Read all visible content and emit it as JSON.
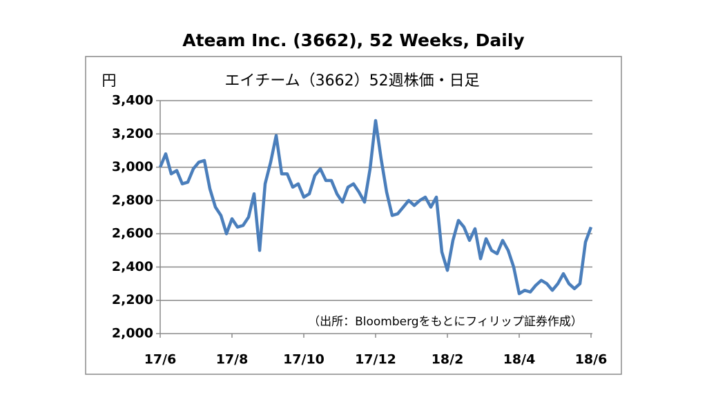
{
  "chart_data": {
    "type": "line",
    "title": "Ateam Inc. (3662), 52 Weeks, Daily",
    "subtitle": "エイチーム（3662）52週株価・日足",
    "y_label": "円",
    "annotation": "（出所：Bloombergをもとにフィリップ証券作成）",
    "categories": [
      "17/6",
      null,
      null,
      null,
      null,
      null,
      null,
      null,
      null,
      null,
      null,
      null,
      null,
      "17/8",
      null,
      null,
      null,
      null,
      null,
      null,
      null,
      null,
      null,
      null,
      null,
      null,
      "17/10",
      null,
      null,
      null,
      null,
      null,
      null,
      null,
      null,
      null,
      null,
      null,
      null,
      "17/12",
      null,
      null,
      null,
      null,
      null,
      null,
      null,
      null,
      null,
      null,
      null,
      null,
      "18/2",
      null,
      null,
      null,
      null,
      null,
      null,
      null,
      null,
      null,
      null,
      null,
      null,
      "18/4",
      null,
      null,
      null,
      null,
      null,
      null,
      null,
      null,
      null,
      null,
      null,
      null,
      "18/6"
    ],
    "series": [
      {
        "name": "Ateam Inc.",
        "color": "#4a7ebb",
        "values": [
          3000,
          3080,
          2960,
          2980,
          2900,
          2910,
          2990,
          3030,
          3040,
          2870,
          2760,
          2710,
          2600,
          2690,
          2640,
          2650,
          2700,
          2840,
          2500,
          2900,
          3030,
          3190,
          2960,
          2960,
          2880,
          2900,
          2820,
          2840,
          2950,
          2990,
          2920,
          2920,
          2840,
          2790,
          2880,
          2900,
          2850,
          2790,
          2990,
          3280,
          3050,
          2850,
          2710,
          2720,
          2760,
          2800,
          2770,
          2800,
          2820,
          2760,
          2820,
          2490,
          2380,
          2560,
          2680,
          2640,
          2560,
          2630,
          2450,
          2570,
          2500,
          2480,
          2560,
          2500,
          2400,
          2240,
          2260,
          2250,
          2290,
          2320,
          2300,
          2260,
          2300,
          2360,
          2300,
          2270,
          2300,
          2550,
          2640
        ]
      }
    ],
    "ylim": [
      2000,
      3400
    ],
    "yticks": [
      {
        "value": 2000,
        "label": "2,000"
      },
      {
        "value": 2200,
        "label": "2,200"
      },
      {
        "value": 2400,
        "label": "2,400"
      },
      {
        "value": 2600,
        "label": "2,600"
      },
      {
        "value": 2800,
        "label": "2,800"
      },
      {
        "value": 3000,
        "label": "3,000"
      },
      {
        "value": 3200,
        "label": "3,200"
      },
      {
        "value": 3400,
        "label": "3,400"
      }
    ],
    "grid": true
  }
}
